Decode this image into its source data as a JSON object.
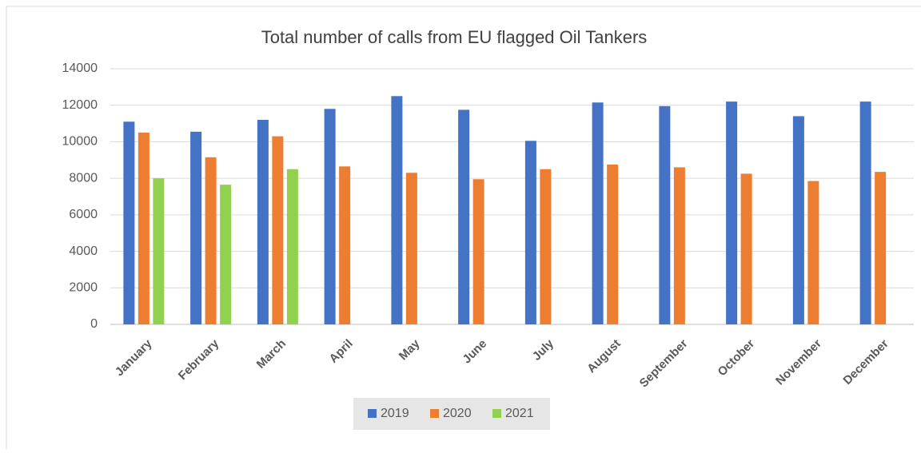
{
  "chart_data": {
    "type": "bar",
    "title": "Total number of calls from EU flagged Oil Tankers",
    "categories": [
      "January",
      "February",
      "March",
      "April",
      "May",
      "June",
      "July",
      "August",
      "September",
      "October",
      "November",
      "December"
    ],
    "series": [
      {
        "name": "2019",
        "color": "#4472c4",
        "values": [
          11100,
          10550,
          11200,
          11800,
          12500,
          11750,
          10050,
          12150,
          11950,
          12200,
          11400,
          12200
        ]
      },
      {
        "name": "2020",
        "color": "#ed7d31",
        "values": [
          10500,
          9150,
          10300,
          8650,
          8300,
          7950,
          8500,
          8750,
          8600,
          8250,
          7850,
          8350
        ]
      },
      {
        "name": "2021",
        "color": "#92d050",
        "values": [
          8000,
          7650,
          8500,
          null,
          null,
          null,
          null,
          null,
          null,
          null,
          null,
          null
        ]
      }
    ],
    "ylim": [
      0,
      14000
    ],
    "yticks": [
      0,
      2000,
      4000,
      6000,
      8000,
      10000,
      12000,
      14000
    ],
    "grid": true,
    "legend": "bottom"
  }
}
